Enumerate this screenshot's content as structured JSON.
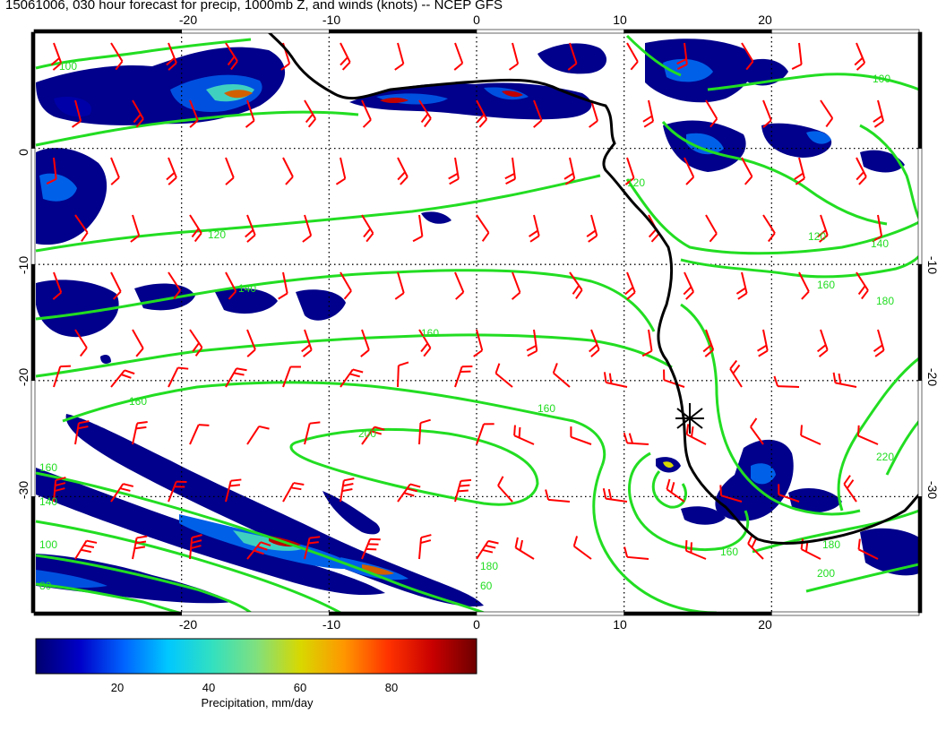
{
  "title": "15061006, 030 hour forecast for precip, 1000mb Z, and winds (knots) -- NCEP GFS",
  "map": {
    "lon_range": [
      -30,
      30
    ],
    "lat_range": [
      -40,
      10
    ],
    "top_ticks": [
      "-20",
      "-10",
      "0",
      "10",
      "20"
    ],
    "bottom_ticks": [
      "-20",
      "-10",
      "0",
      "10",
      "20"
    ],
    "left_ticks": [
      "0",
      "-10",
      "-20",
      "-30"
    ],
    "right_ticks": [
      "-10",
      "-20",
      "-30"
    ],
    "grid": "dotted every 10 degrees",
    "contour_variable": "1000mb geopotential height",
    "contour_labels": [
      "100",
      "120",
      "140",
      "160",
      "180",
      "200",
      "220",
      "80",
      "60"
    ],
    "precip_variable": "precipitation",
    "wind_barb_color": "#ff0000",
    "contour_color": "#22dd22",
    "coast_color": "#000000",
    "marker": "star near 15E, 24S"
  },
  "colorbar": {
    "ticks": [
      "20",
      "40",
      "60",
      "80"
    ],
    "range": [
      0,
      97
    ],
    "label": "Precipitation, mm/day",
    "colors": [
      "#00006e",
      "#0000c8",
      "#0064ff",
      "#00c8ff",
      "#32e0c0",
      "#7fe07f",
      "#d8d800",
      "#ff9600",
      "#ff3200",
      "#c80000",
      "#6e0000"
    ]
  }
}
